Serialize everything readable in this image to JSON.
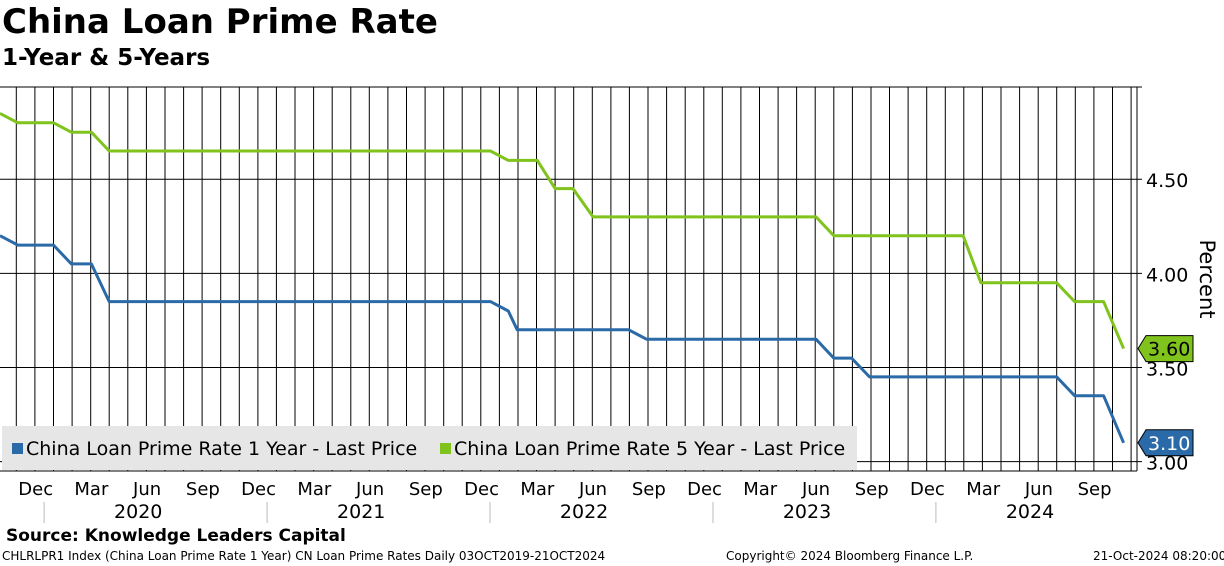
{
  "header": {
    "title": "China Loan Prime Rate",
    "subtitle": "1-Year & 5-Years"
  },
  "footer": {
    "source": "Source: Knowledge Leaders Capital",
    "index_info": "CHLRLPR1 Index (China Loan Prime Rate 1 Year) CN Loan Prime Rates  Daily 03OCT2019-21OCT2024",
    "copyright": "Copyright© 2024 Bloomberg Finance L.P.",
    "timestamp": "21-Oct-2024 08:20:00"
  },
  "colors": {
    "series_1y": "#2a6aa8",
    "series_5y": "#7fc31c",
    "grid": "#000000",
    "legend_bg": "#e6e6e6"
  },
  "chart_data": {
    "type": "line",
    "title": "China Loan Prime Rate",
    "subtitle": "1-Year & 5-Years",
    "ylabel": "Percent",
    "ylim": [
      2.95,
      4.99
    ],
    "yticks": [
      3.0,
      3.5,
      4.0,
      4.5
    ],
    "ytick_labels": [
      "3.00",
      "3.50",
      "4.00",
      "4.50"
    ],
    "x_range": [
      2019.76,
      2024.86
    ],
    "x_month_ticks": [
      {
        "t": 2019.92,
        "label": "Dec"
      },
      {
        "t": 2020.17,
        "label": "Mar"
      },
      {
        "t": 2020.42,
        "label": "Jun"
      },
      {
        "t": 2020.67,
        "label": "Sep"
      },
      {
        "t": 2020.92,
        "label": "Dec"
      },
      {
        "t": 2021.17,
        "label": "Mar"
      },
      {
        "t": 2021.42,
        "label": "Jun"
      },
      {
        "t": 2021.67,
        "label": "Sep"
      },
      {
        "t": 2021.92,
        "label": "Dec"
      },
      {
        "t": 2022.17,
        "label": "Mar"
      },
      {
        "t": 2022.42,
        "label": "Jun"
      },
      {
        "t": 2022.67,
        "label": "Sep"
      },
      {
        "t": 2022.92,
        "label": "Dec"
      },
      {
        "t": 2023.17,
        "label": "Mar"
      },
      {
        "t": 2023.42,
        "label": "Jun"
      },
      {
        "t": 2023.67,
        "label": "Sep"
      },
      {
        "t": 2023.92,
        "label": "Dec"
      },
      {
        "t": 2024.17,
        "label": "Mar"
      },
      {
        "t": 2024.42,
        "label": "Jun"
      },
      {
        "t": 2024.67,
        "label": "Sep"
      }
    ],
    "x_year_labels": [
      {
        "t": 2020.38,
        "label": "2020"
      },
      {
        "t": 2021.38,
        "label": "2021"
      },
      {
        "t": 2022.38,
        "label": "2022"
      },
      {
        "t": 2023.38,
        "label": "2023"
      },
      {
        "t": 2024.38,
        "label": "2024"
      }
    ],
    "x_year_boundaries": [
      2019.958,
      2020.958,
      2021.958,
      2022.958,
      2023.958
    ],
    "series": [
      {
        "name": "China Loan Prime Rate 1 Year - Last Price",
        "last_value": "3.10",
        "points": [
          [
            2019.76,
            4.2
          ],
          [
            2019.84,
            4.15
          ],
          [
            2020.0,
            4.15
          ],
          [
            2020.08,
            4.05
          ],
          [
            2020.17,
            4.05
          ],
          [
            2020.25,
            3.85
          ],
          [
            2021.96,
            3.85
          ],
          [
            2022.04,
            3.8
          ],
          [
            2022.08,
            3.7
          ],
          [
            2022.58,
            3.7
          ],
          [
            2022.66,
            3.65
          ],
          [
            2023.42,
            3.65
          ],
          [
            2023.5,
            3.55
          ],
          [
            2023.58,
            3.55
          ],
          [
            2023.66,
            3.45
          ],
          [
            2024.5,
            3.45
          ],
          [
            2024.58,
            3.35
          ],
          [
            2024.71,
            3.35
          ],
          [
            2024.8,
            3.1
          ]
        ]
      },
      {
        "name": "China Loan Prime Rate 5 Year - Last Price",
        "last_value": "3.60",
        "points": [
          [
            2019.76,
            4.85
          ],
          [
            2019.84,
            4.8
          ],
          [
            2020.0,
            4.8
          ],
          [
            2020.08,
            4.75
          ],
          [
            2020.17,
            4.75
          ],
          [
            2020.25,
            4.65
          ],
          [
            2021.96,
            4.65
          ],
          [
            2022.04,
            4.6
          ],
          [
            2022.17,
            4.6
          ],
          [
            2022.25,
            4.45
          ],
          [
            2022.33,
            4.45
          ],
          [
            2022.42,
            4.3
          ],
          [
            2023.42,
            4.3
          ],
          [
            2023.5,
            4.2
          ],
          [
            2024.08,
            4.2
          ],
          [
            2024.16,
            3.95
          ],
          [
            2024.5,
            3.95
          ],
          [
            2024.58,
            3.85
          ],
          [
            2024.71,
            3.85
          ],
          [
            2024.8,
            3.6
          ]
        ]
      }
    ]
  }
}
